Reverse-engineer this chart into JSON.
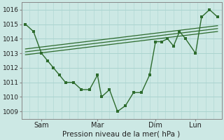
{
  "background_color": "#cce8e4",
  "grid_color_h": "#aad4cf",
  "grid_color_v": "#d4b0b0",
  "line_color": "#2d6b2d",
  "title": "Pression niveau de la mer( hPa )",
  "ylim": [
    1008.5,
    1016.5
  ],
  "yticks": [
    1009,
    1010,
    1011,
    1012,
    1013,
    1014,
    1015,
    1016
  ],
  "x_tick_labels": [
    "Sam",
    "Mar",
    "Dim",
    "Lun"
  ],
  "x_tick_positions": [
    8,
    36,
    65,
    85
  ],
  "series_x": [
    0,
    4,
    8,
    11,
    14,
    17,
    20,
    24,
    28,
    32,
    36,
    38,
    42,
    46,
    50,
    54,
    58,
    62,
    65,
    68,
    71,
    74,
    77,
    80,
    85,
    88,
    92,
    96
  ],
  "series_y": [
    1015.0,
    1014.5,
    1013.0,
    1012.5,
    1012.0,
    1011.5,
    1011.0,
    1011.0,
    1010.5,
    1010.5,
    1011.5,
    1010.0,
    1010.5,
    1009.0,
    1009.4,
    1010.3,
    1010.3,
    1011.5,
    1013.8,
    1013.8,
    1014.0,
    1013.5,
    1014.5,
    1014.0,
    1013.0,
    1015.5,
    1016.0,
    1015.5
  ],
  "trend1_x": [
    0,
    96
  ],
  "trend1_y": [
    1012.9,
    1014.5
  ],
  "trend2_x": [
    0,
    96
  ],
  "trend2_y": [
    1013.1,
    1014.7
  ],
  "trend3_x": [
    0,
    96
  ],
  "trend3_y": [
    1013.3,
    1014.9
  ],
  "vlines_x": [
    8,
    36,
    65,
    85
  ],
  "xlim": [
    -2,
    98
  ]
}
